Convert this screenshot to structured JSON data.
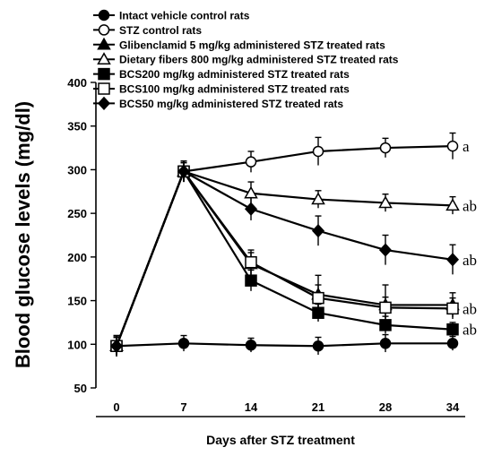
{
  "chart_data": {
    "type": "line",
    "xlabel": "Days after STZ treatment",
    "ylabel": "Blood glucose levels (mg/dl)",
    "x": [
      0,
      7,
      14,
      21,
      28,
      34
    ],
    "x_tick_labels": [
      "0",
      "7",
      "14",
      "21",
      "28",
      "34"
    ],
    "y_ticks": [
      "50",
      "100",
      "150",
      "200",
      "250",
      "300",
      "350",
      "400"
    ],
    "ylim": [
      50,
      400
    ],
    "grid": false,
    "legend_position": "top",
    "series": [
      {
        "name": "Intact vehicle control rats",
        "marker": "filled-circle",
        "values": [
          98,
          101,
          99,
          98,
          101,
          101
        ],
        "errors": [
          10,
          9,
          8,
          10,
          10,
          8
        ],
        "label": ""
      },
      {
        "name": "STZ control rats",
        "marker": "open-circle",
        "values": [
          98,
          298,
          309,
          321,
          325,
          327
        ],
        "errors": [
          12,
          12,
          12,
          16,
          11,
          15
        ],
        "label": "a"
      },
      {
        "name": "Glibenclamid 5 mg/kg administered STZ treated rats",
        "marker": "filled-triangle",
        "values": [
          98,
          298,
          192,
          157,
          145,
          145
        ],
        "errors": [
          10,
          12,
          13,
          22,
          23,
          14
        ],
        "label": ""
      },
      {
        "name": "Dietary fibers 800 mg/kg administered STZ treated rats",
        "marker": "open-triangle",
        "values": [
          98,
          298,
          273,
          266,
          262,
          259
        ],
        "errors": [
          10,
          12,
          13,
          10,
          10,
          10
        ],
        "label": "ab"
      },
      {
        "name": "BCS200 mg/kg administered STZ treated rats",
        "marker": "filled-square",
        "values": [
          98,
          298,
          173,
          136,
          122,
          117
        ],
        "errors": [
          10,
          12,
          12,
          10,
          10,
          8
        ],
        "label": "ab"
      },
      {
        "name": "BCS100 mg/kg administered STZ treated rats",
        "marker": "open-square",
        "values": [
          98,
          298,
          194,
          153,
          142,
          141
        ],
        "errors": [
          12,
          10,
          14,
          15,
          12,
          12
        ],
        "label": "ab"
      },
      {
        "name": "BCS50 mg/kg administered STZ treated rats",
        "marker": "filled-diamond",
        "values": [
          98,
          298,
          255,
          230,
          208,
          197
        ],
        "errors": [
          10,
          10,
          13,
          17,
          17,
          17
        ],
        "label": "ab"
      }
    ],
    "sig_label_order": [
      "a",
      "ab",
      "ab",
      "ab",
      "ab",
      "ab"
    ]
  }
}
